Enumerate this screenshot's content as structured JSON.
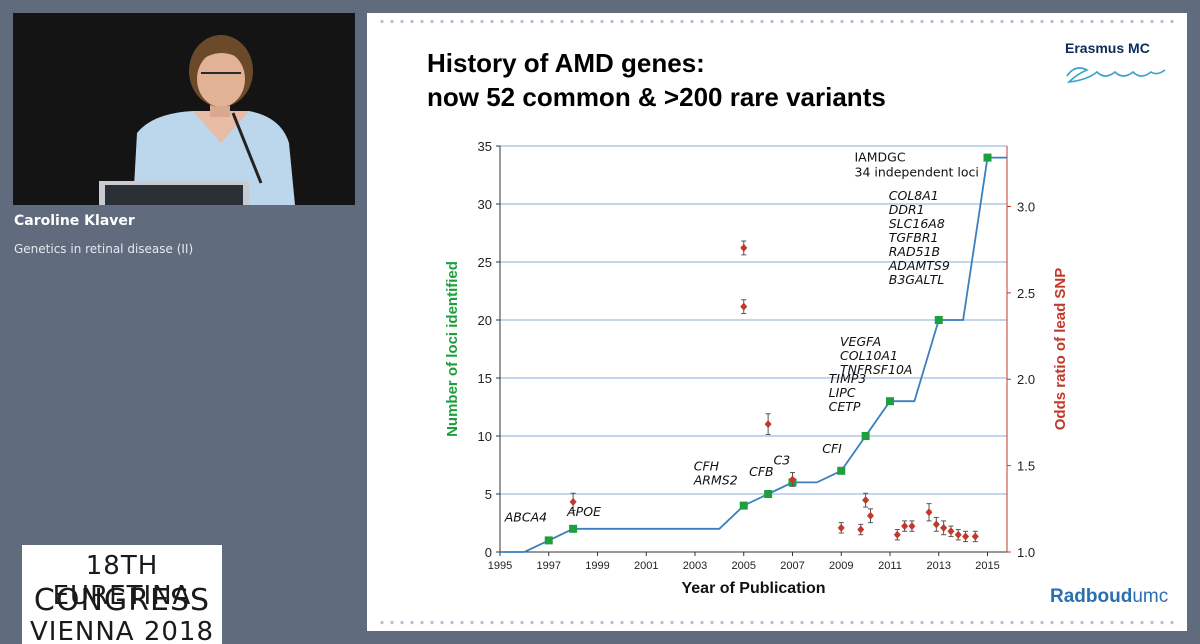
{
  "speaker": {
    "name": "Caroline Klaver",
    "talk": "Genetics in retinal disease (II)"
  },
  "congress": {
    "line1": "18TH EURETINA",
    "line2": "CONGRESS",
    "line3": "VIENNA 2018"
  },
  "slide": {
    "title_line1": "History of AMD genes:",
    "title_line2": "now 52 common & >200 rare variants",
    "logo_top_right": "Erasmus MC",
    "logo_bottom_right_a": "Radboud",
    "logo_bottom_right_b": "umc"
  },
  "colors": {
    "loci_line": "#3a7fc0",
    "loci_marker": "#1f9e3e",
    "odds_marker": "#c0392b",
    "grid": "#9fbfe0",
    "left_axis_label": "#1f9e3e",
    "right_axis_label": "#c0392b"
  },
  "chart_data": {
    "type": "line",
    "xlabel": "Year of Publication",
    "ylabel": "Number of loci identified",
    "y2label": "Odds ratio of lead SNP",
    "xlim": [
      1995,
      2015.8
    ],
    "ylim": [
      0,
      35
    ],
    "y2lim": [
      1.0,
      3.35
    ],
    "xticks": [
      1995,
      1997,
      1999,
      2001,
      2003,
      2005,
      2007,
      2009,
      2011,
      2013,
      2015
    ],
    "yticks": [
      0,
      5,
      10,
      15,
      20,
      25,
      30,
      35
    ],
    "y2ticks": [
      1.0,
      1.5,
      2.0,
      2.5,
      3.0
    ],
    "y2ticklabels": [
      "1.0",
      "1.5",
      "2.0",
      "2.5",
      "3.0"
    ],
    "grid": true,
    "loci_step_line": [
      [
        1995,
        0
      ],
      [
        1996,
        0
      ],
      [
        1997,
        1
      ],
      [
        1998,
        2
      ],
      [
        2004,
        2
      ],
      [
        2005,
        4
      ],
      [
        2006,
        5
      ],
      [
        2007,
        6
      ],
      [
        2008,
        6
      ],
      [
        2009,
        7
      ],
      [
        2010,
        10
      ],
      [
        2011,
        13
      ],
      [
        2012,
        13
      ],
      [
        2013,
        20
      ],
      [
        2014,
        20
      ],
      [
        2015,
        34
      ],
      [
        2015.8,
        34
      ]
    ],
    "loci_markers": [
      [
        1997,
        1
      ],
      [
        1998,
        2
      ],
      [
        2005,
        4
      ],
      [
        2006,
        5
      ],
      [
        2007,
        6
      ],
      [
        2009,
        7
      ],
      [
        2010,
        10
      ],
      [
        2011,
        13
      ],
      [
        2013,
        20
      ],
      [
        2015,
        34
      ]
    ],
    "odds_ratio_points": [
      {
        "x": 1998,
        "y": 1.29,
        "err": 0.05
      },
      {
        "x": 2005,
        "y": 2.76,
        "err": 0.04
      },
      {
        "x": 2005,
        "y": 2.42,
        "err": 0.04
      },
      {
        "x": 2006,
        "y": 1.74,
        "err": 0.06
      },
      {
        "x": 2007,
        "y": 1.42,
        "err": 0.04
      },
      {
        "x": 2009,
        "y": 1.14,
        "err": 0.03
      },
      {
        "x": 2009.8,
        "y": 1.13,
        "err": 0.03
      },
      {
        "x": 2010,
        "y": 1.3,
        "err": 0.04
      },
      {
        "x": 2010.2,
        "y": 1.21,
        "err": 0.04
      },
      {
        "x": 2011.3,
        "y": 1.1,
        "err": 0.03
      },
      {
        "x": 2011.6,
        "y": 1.15,
        "err": 0.03
      },
      {
        "x": 2011.9,
        "y": 1.15,
        "err": 0.03
      },
      {
        "x": 2012.6,
        "y": 1.23,
        "err": 0.05
      },
      {
        "x": 2012.9,
        "y": 1.16,
        "err": 0.04
      },
      {
        "x": 2013.2,
        "y": 1.14,
        "err": 0.04
      },
      {
        "x": 2013.5,
        "y": 1.12,
        "err": 0.03
      },
      {
        "x": 2013.8,
        "y": 1.1,
        "err": 0.03
      },
      {
        "x": 2014.1,
        "y": 1.09,
        "err": 0.03
      },
      {
        "x": 2014.5,
        "y": 1.09,
        "err": 0.03
      }
    ],
    "annotations": [
      {
        "lines": [
          "ABCA4"
        ],
        "x": 1997,
        "y": 1
      },
      {
        "lines": [
          "APOE"
        ],
        "x": 1998,
        "y": 2
      },
      {
        "lines": [
          "CFH",
          "ARMS2"
        ],
        "x": 2005,
        "y": 4
      },
      {
        "lines": [
          "CFB"
        ],
        "x": 2006,
        "y": 5
      },
      {
        "lines": [
          "C3"
        ],
        "x": 2007,
        "y": 6
      },
      {
        "lines": [
          "CFI"
        ],
        "x": 2009,
        "y": 7
      },
      {
        "lines": [
          "TIMP3",
          "LIPC",
          "CETP"
        ],
        "x": 2010,
        "y": 10
      },
      {
        "lines": [
          "VEGFA",
          "COL10A1",
          "TNFRSF10A"
        ],
        "x": 2011,
        "y": 13
      },
      {
        "lines": [
          "COL8A1",
          "DDR1",
          "SLC16A8",
          "TGFBR1",
          "RAD51B",
          "ADAMTS9",
          "B3GALTL"
        ],
        "x": 2013,
        "y": 20
      },
      {
        "lines": [
          "IAMDGC",
          "34 independent loci"
        ],
        "x": 2015,
        "y": 34
      }
    ]
  }
}
